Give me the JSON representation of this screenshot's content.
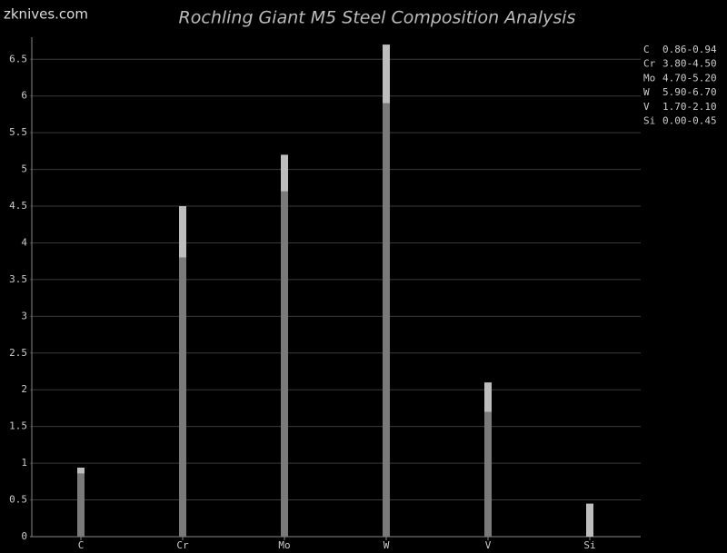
{
  "chart_data": {
    "type": "range_bar",
    "source": "zknives.com",
    "title": "Rochling Giant M5 Steel Composition Analysis",
    "categories": [
      "C",
      "Cr",
      "Mo",
      "W",
      "V",
      "Si"
    ],
    "low": [
      0.86,
      3.8,
      4.7,
      5.9,
      1.7,
      0
    ],
    "high": [
      0.94,
      4.5,
      5.2,
      6.7,
      2.1,
      0.45
    ],
    "range_labels": [
      "0.86-0.94",
      "3.80-4.50",
      "4.70-5.20",
      "5.90-6.70",
      "1.70-2.10",
      "0.00-0.45"
    ],
    "low_color": "#7a7a7a",
    "high_color": "#bdbdbd",
    "ylim": [
      0,
      6.8
    ],
    "yticks": [
      0,
      0.5,
      1,
      1.5,
      2,
      2.5,
      3,
      3.5,
      4,
      4.5,
      5,
      5.5,
      6,
      6.5
    ],
    "grid": true
  }
}
